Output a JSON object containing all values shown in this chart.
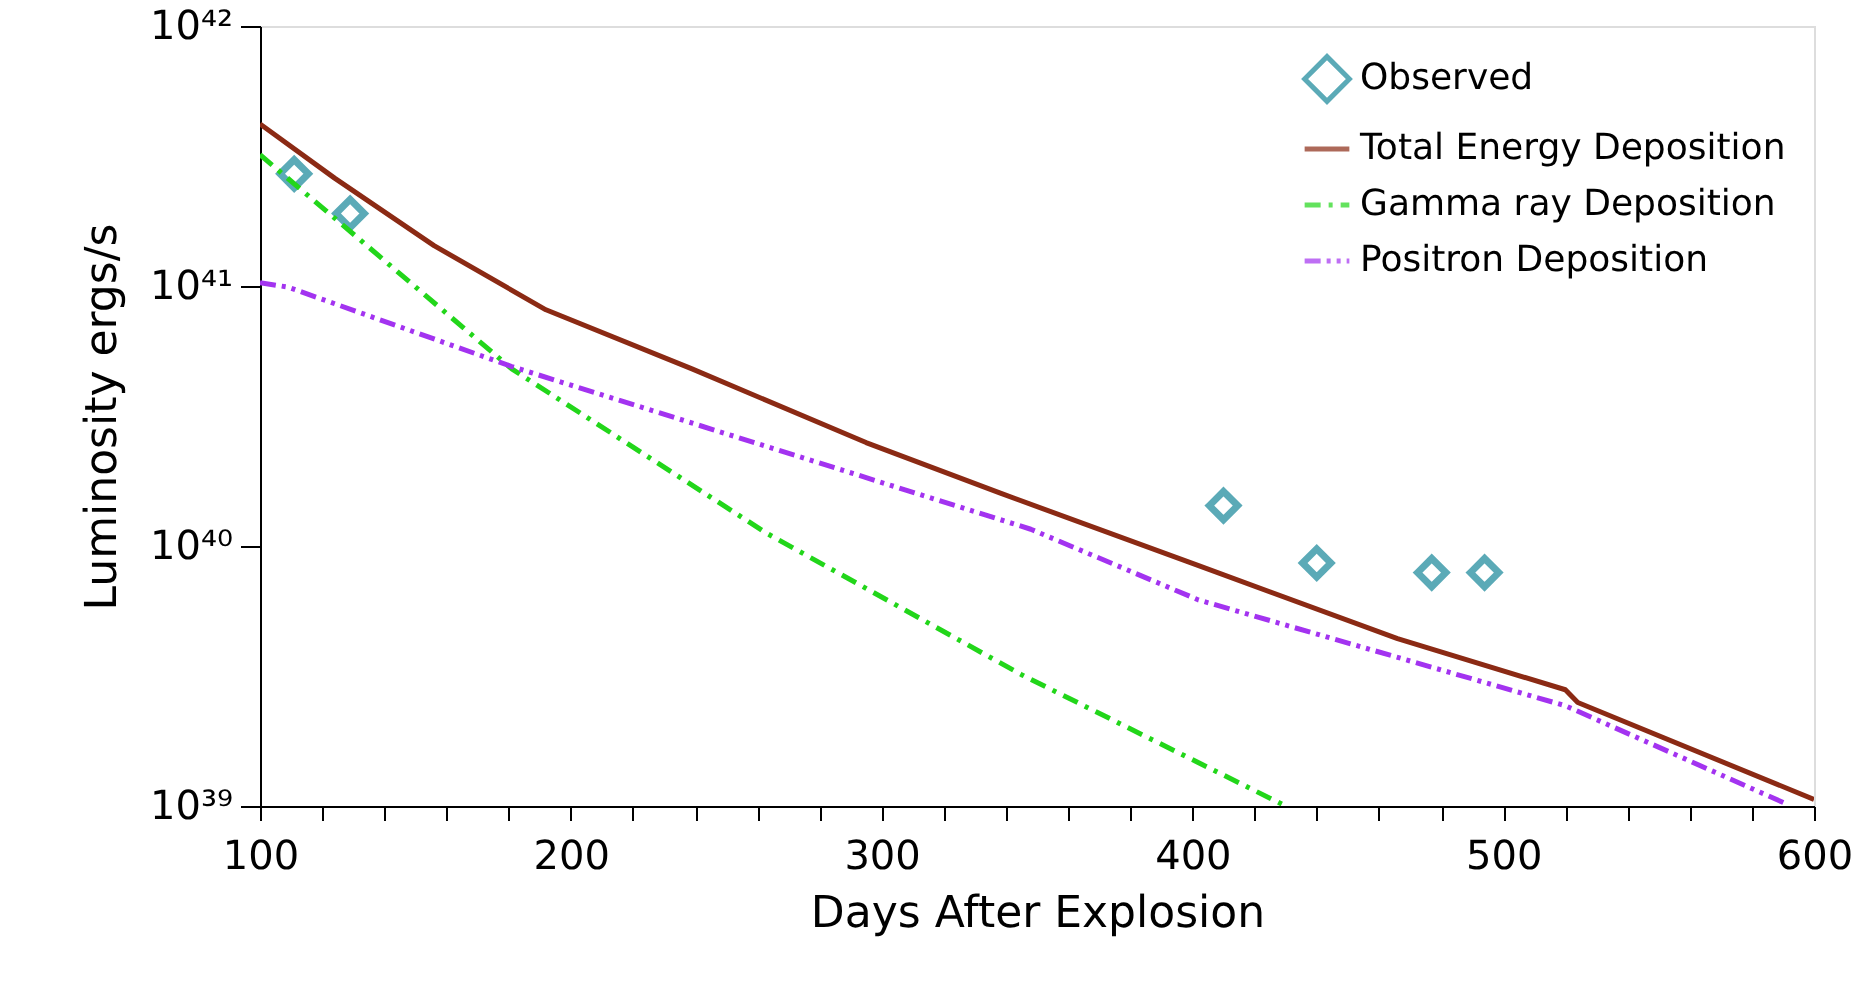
{
  "chart_data": {
    "type": "line",
    "xlabel": "Days After Explosion",
    "ylabel": "Luminosity ergs/s",
    "log": "y",
    "xlim": [
      100,
      600
    ],
    "ylim": [
      1e+39,
      1e+42
    ],
    "xticks": [
      100,
      200,
      300,
      400,
      500,
      600,
      {
        "value": 120,
        "label": null
      },
      {
        "value": 140,
        "label": null
      },
      {
        "value": 160,
        "label": null
      },
      {
        "value": 180,
        "label": null
      },
      {
        "value": 220,
        "label": null
      },
      {
        "value": 240,
        "label": null
      },
      {
        "value": 260,
        "label": null
      },
      {
        "value": 280,
        "label": null
      },
      {
        "value": 320,
        "label": null
      },
      {
        "value": 340,
        "label": null
      },
      {
        "value": 360,
        "label": null
      },
      {
        "value": 380,
        "label": null
      },
      {
        "value": 420,
        "label": null
      },
      {
        "value": 440,
        "label": null
      },
      {
        "value": 460,
        "label": null
      },
      {
        "value": 480,
        "label": null
      },
      {
        "value": 520,
        "label": null
      },
      {
        "value": 540,
        "label": null
      },
      {
        "value": 560,
        "label": null
      },
      {
        "value": 580,
        "label": null
      }
    ],
    "yticks": [
      {
        "value": 1e+39,
        "label": "10³⁹"
      },
      {
        "value": 1e+40,
        "label": "10⁴⁰"
      },
      {
        "value": 1e+41,
        "label": "10⁴¹"
      },
      {
        "value": 1e+42,
        "label": "10⁴²"
      }
    ],
    "grid": false,
    "legend": "top right",
    "series": [
      {
        "name": "Observed",
        "type": "scatter",
        "marker": "diamond",
        "color": "#17879a",
        "x": [
          111,
          129,
          410,
          440,
          477,
          494
        ],
        "values": [
          2.7e+41,
          1.9e+41,
          1.43e+40,
          8.6e+39,
          7.9e+39,
          7.9e+39
        ]
      },
      {
        "name": "Total Energy Deposition",
        "line_style": "solid",
        "color": "#8b2a14",
        "x": [
          100,
          124,
          156,
          192,
          239,
          295,
          338,
          402,
          466,
          520,
          524,
          600
        ],
        "values": [
          4.2e+41,
          2.6e+41,
          1.43e+41,
          8.1e+40,
          4.8e+40,
          2.5e+40,
          1.6e+40,
          8.4e+39,
          4.4e+39,
          2.8e+39,
          2.5e+39,
          1.06e+39
        ]
      },
      {
        "name": "Gamma ray Deposition",
        "line_style": "dashdot",
        "color": "#22d61a",
        "x": [
          100,
          181,
          263,
          345,
          430
        ],
        "values": [
          3.2e+41,
          4.8e+40,
          1.12e+40,
          3.2e+39,
          1e+39
        ]
      },
      {
        "name": "Positron Deposition",
        "line_style": "dashdotdot",
        "color": "#a333f0",
        "x": [
          100,
          109,
          181,
          348,
          402,
          520,
          591
        ],
        "values": [
          1.03e+41,
          9.9e+40,
          4.9e+40,
          1.16e+40,
          6.2e+39,
          2.43e+39,
          1.02e+39
        ]
      }
    ]
  }
}
